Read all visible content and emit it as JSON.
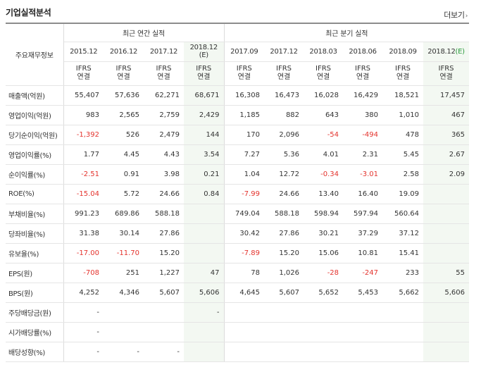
{
  "section_title": "기업실적분석",
  "more_label": "더보기",
  "more_chevron": "›",
  "header": {
    "label_col": "주요재무정보",
    "annual_group": "최근 연간 실적",
    "quarterly_group": "최근 분기 실적",
    "columns": [
      {
        "period": "2015.12",
        "estimate": false,
        "standard_top": "IFRS",
        "standard_bottom": "연결"
      },
      {
        "period": "2016.12",
        "estimate": false,
        "standard_top": "IFRS",
        "standard_bottom": "연결"
      },
      {
        "period": "2017.12",
        "estimate": false,
        "standard_top": "IFRS",
        "standard_bottom": "연결"
      },
      {
        "period": "2018.12",
        "estimate": true,
        "est_mark": "(E)",
        "standard_top": "IFRS",
        "standard_bottom": "연결"
      },
      {
        "period": "2017.09",
        "estimate": false,
        "standard_top": "IFRS",
        "standard_bottom": "연결"
      },
      {
        "period": "2017.12",
        "estimate": false,
        "standard_top": "IFRS",
        "standard_bottom": "연결"
      },
      {
        "period": "2018.03",
        "estimate": false,
        "standard_top": "IFRS",
        "standard_bottom": "연결"
      },
      {
        "period": "2018.06",
        "estimate": false,
        "standard_top": "IFRS",
        "standard_bottom": "연결"
      },
      {
        "period": "2018.09",
        "estimate": false,
        "standard_top": "IFRS",
        "standard_bottom": "연결"
      },
      {
        "period": "2018.12",
        "estimate": true,
        "est_mark": "(E)",
        "standard_top": "IFRS",
        "standard_bottom": "연결"
      }
    ]
  },
  "rows": [
    {
      "label": "매출액(억원)",
      "values": [
        "55,407",
        "57,636",
        "62,271",
        "68,671",
        "16,308",
        "16,473",
        "16,028",
        "16,429",
        "18,521",
        "17,457"
      ]
    },
    {
      "label": "영업이익(억원)",
      "values": [
        "983",
        "2,565",
        "2,759",
        "2,429",
        "1,185",
        "882",
        "643",
        "380",
        "1,010",
        "467"
      ]
    },
    {
      "label": "당기순이익(억원)",
      "values": [
        "-1,392",
        "526",
        "2,479",
        "144",
        "170",
        "2,096",
        "-54",
        "-494",
        "478",
        "365"
      ]
    },
    {
      "label": "영업이익률(%)",
      "values": [
        "1.77",
        "4.45",
        "4.43",
        "3.54",
        "7.27",
        "5.36",
        "4.01",
        "2.31",
        "5.45",
        "2.67"
      ]
    },
    {
      "label": "순이익률(%)",
      "values": [
        "-2.51",
        "0.91",
        "3.98",
        "0.21",
        "1.04",
        "12.72",
        "-0.34",
        "-3.01",
        "2.58",
        "2.09"
      ]
    },
    {
      "label": "ROE(%)",
      "values": [
        "-15.04",
        "5.72",
        "24.66",
        "0.84",
        "-7.99",
        "24.66",
        "13.40",
        "16.40",
        "19.09",
        ""
      ]
    },
    {
      "label": "부채비율(%)",
      "values": [
        "991.23",
        "689.86",
        "588.18",
        "",
        "749.04",
        "588.18",
        "598.94",
        "597.94",
        "560.64",
        ""
      ]
    },
    {
      "label": "당좌비율(%)",
      "values": [
        "31.38",
        "30.14",
        "27.86",
        "",
        "30.42",
        "27.86",
        "30.21",
        "37.29",
        "37.12",
        ""
      ]
    },
    {
      "label": "유보율(%)",
      "values": [
        "-17.00",
        "-11.70",
        "15.20",
        "",
        "-7.89",
        "15.20",
        "15.06",
        "10.81",
        "15.41",
        ""
      ]
    },
    {
      "label": "EPS(원)",
      "values": [
        "-708",
        "251",
        "1,227",
        "47",
        "78",
        "1,026",
        "-28",
        "-247",
        "233",
        "55"
      ]
    },
    {
      "label": "BPS(원)",
      "values": [
        "4,252",
        "4,346",
        "5,607",
        "5,606",
        "4,645",
        "5,607",
        "5,652",
        "5,453",
        "5,662",
        "5,606"
      ]
    },
    {
      "label": "주당배당금(원)",
      "values": [
        "-",
        "",
        "",
        "-",
        "",
        "",
        "",
        "",
        "",
        ""
      ]
    },
    {
      "label": "시가배당률(%)",
      "values": [
        "-",
        "",
        "",
        "",
        "",
        "",
        "",
        "",
        "",
        ""
      ]
    },
    {
      "label": "배당성향(%)",
      "values": [
        "-",
        "-",
        "-",
        "",
        "",
        "",
        "",
        "",
        "",
        ""
      ]
    }
  ],
  "colors": {
    "negative": "#e4332d",
    "ifrs": "#e46c0a",
    "estimate_bg": "#f3f8f2",
    "estimate_mark": "#2a9a3c"
  }
}
